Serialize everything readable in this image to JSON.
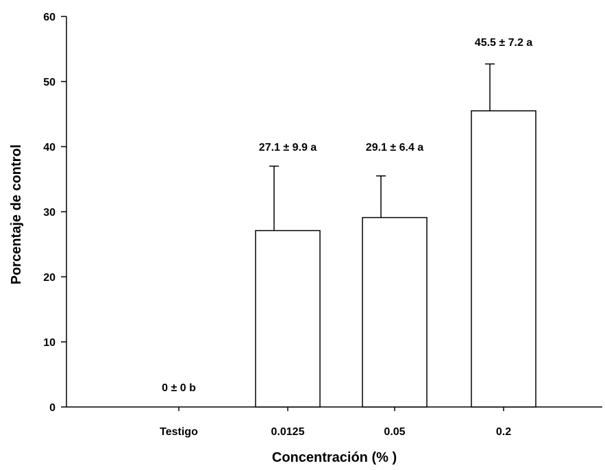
{
  "chart_data": {
    "type": "bar",
    "categories": [
      "Testigo",
      "0.0125",
      "0.05",
      "0.2"
    ],
    "values": [
      0,
      27.1,
      29.1,
      45.5
    ],
    "errors": [
      0,
      9.9,
      6.4,
      7.2
    ],
    "data_labels": [
      "0 ± 0 b",
      "27.1 ± 9.9 a",
      "29.1 ± 6.4 a",
      "45.5 ± 7.2 a"
    ],
    "xlabel": "Concentración (% )",
    "ylabel": "Porcentaje de control",
    "ylim": [
      0,
      60
    ],
    "yticks": [
      0,
      10,
      20,
      30,
      40,
      50,
      60
    ],
    "grid": false,
    "colors": {
      "bar_fill": "#ffffff",
      "bar_stroke": "#000000",
      "axis": "#000000"
    }
  }
}
